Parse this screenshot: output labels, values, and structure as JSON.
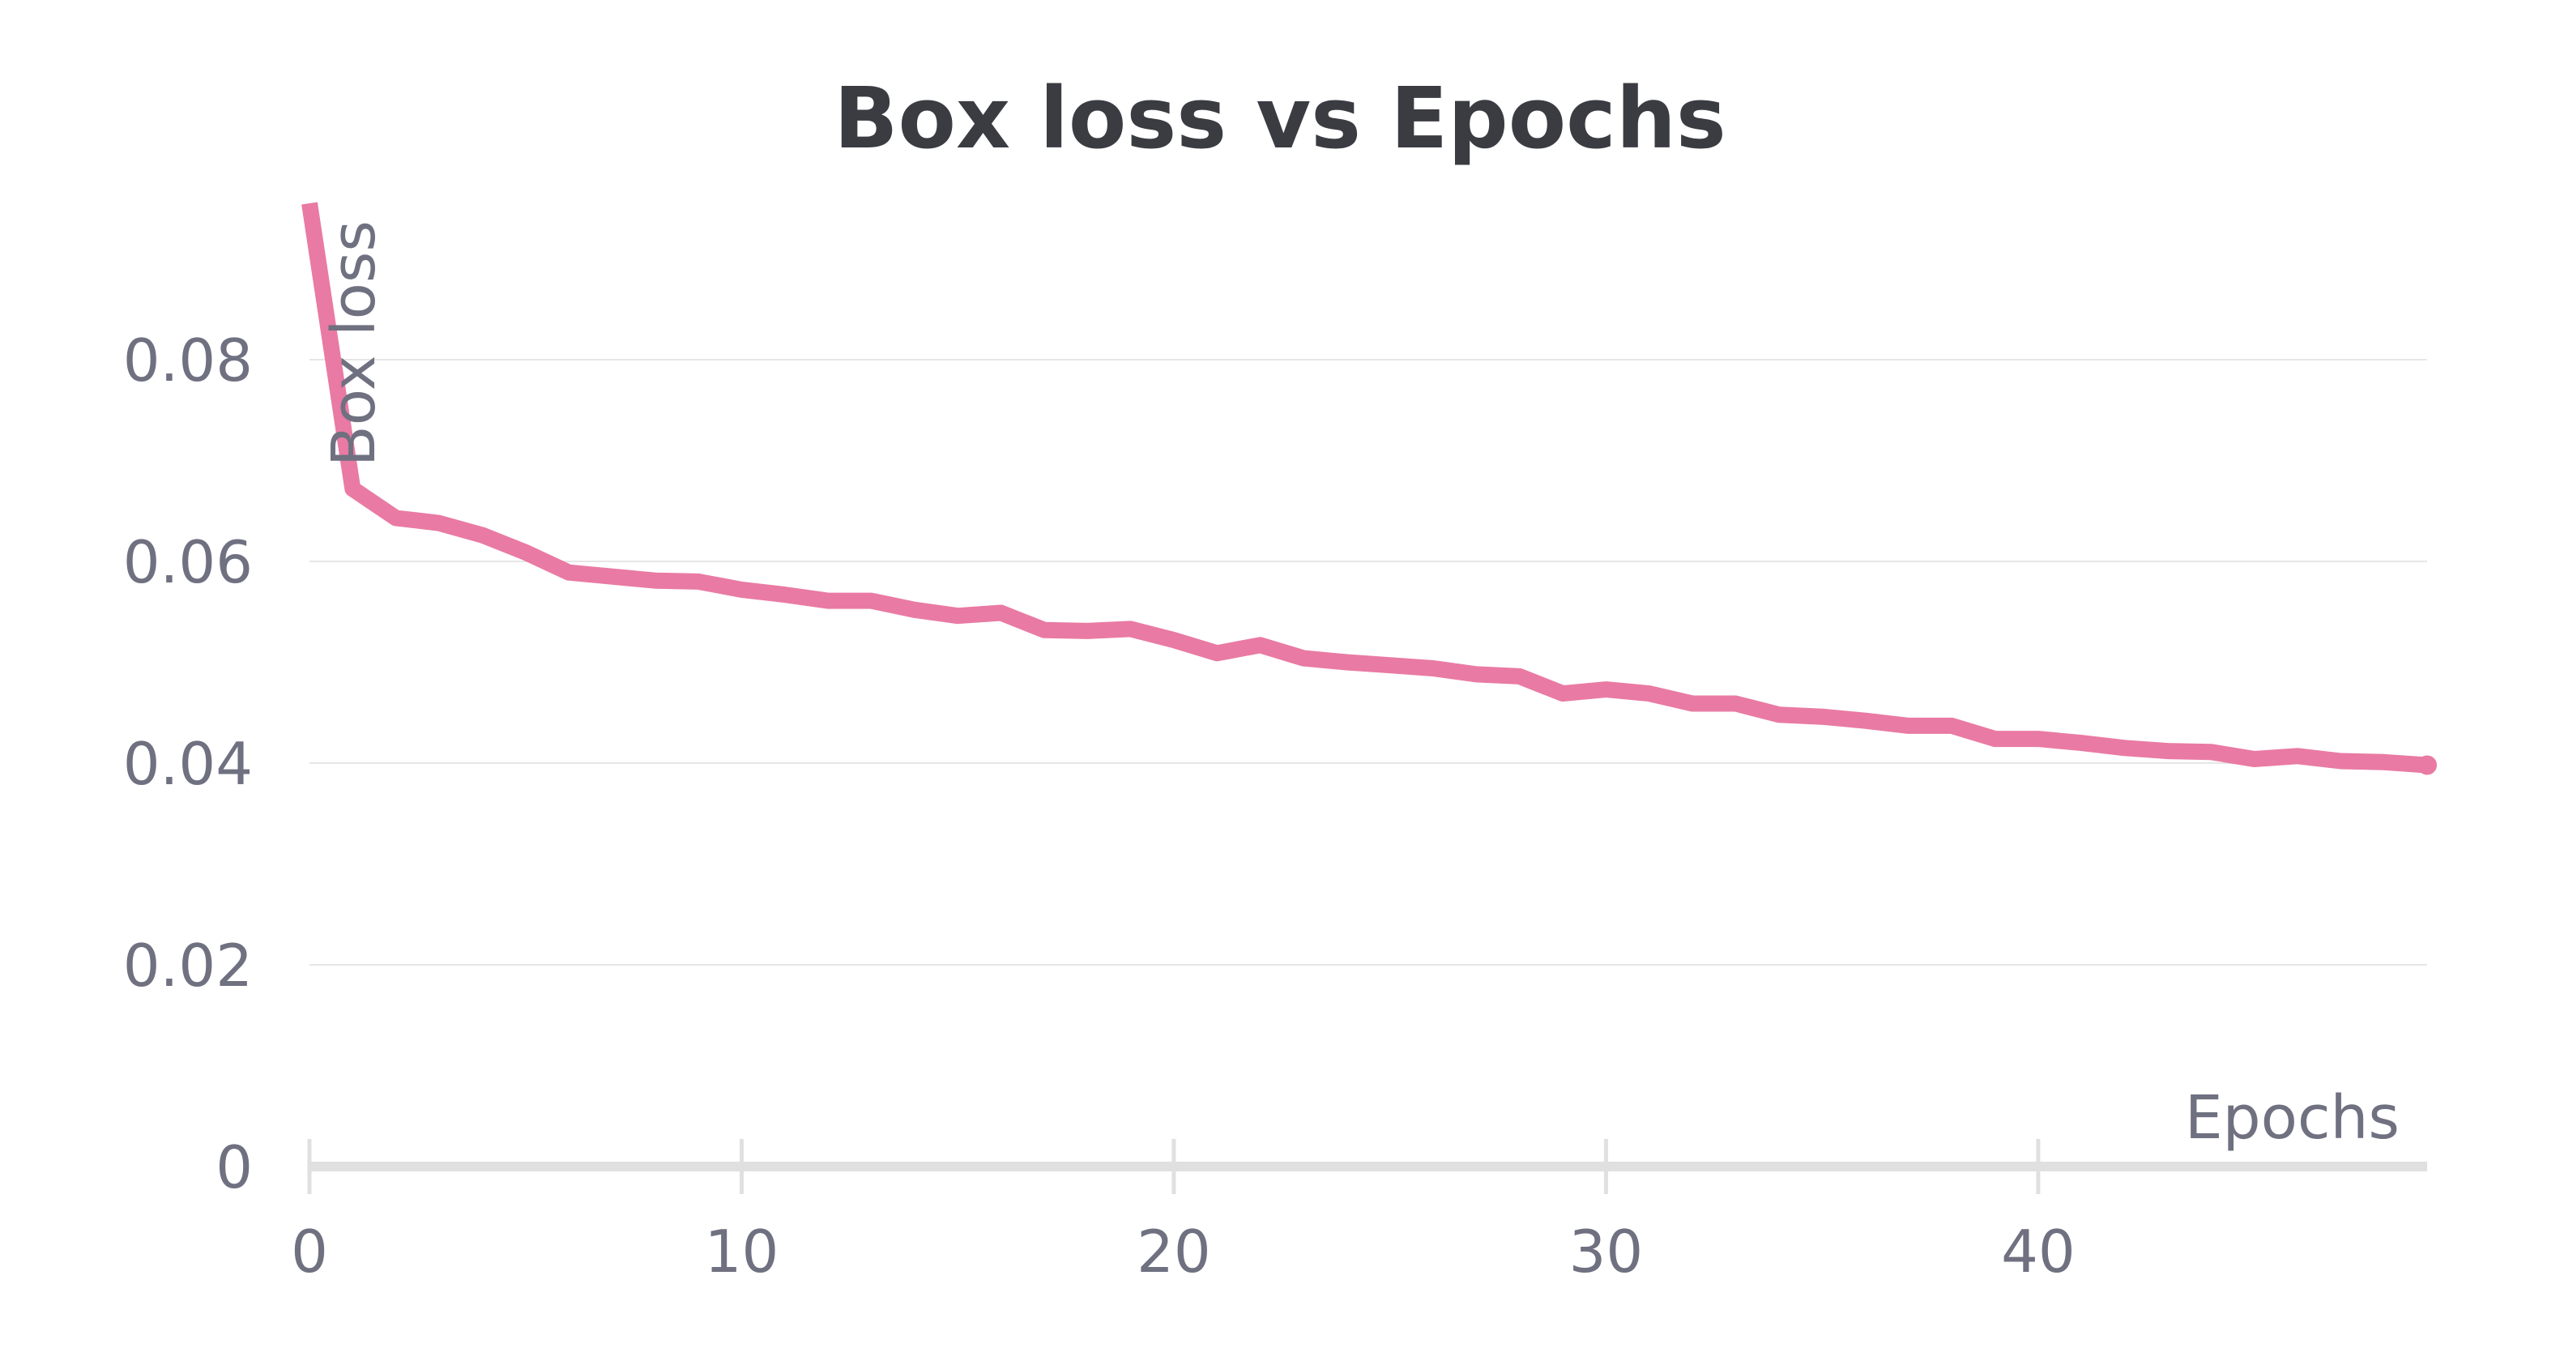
{
  "chart_data": {
    "type": "line",
    "title": "Box loss vs Epochs",
    "xlabel": "Epochs",
    "ylabel": "Box loss",
    "xlim": [
      0,
      49
    ],
    "ylim": [
      0,
      0.096
    ],
    "x_ticks": [
      0,
      10,
      20,
      30,
      40
    ],
    "x_tick_labels": [
      "0",
      "10",
      "20",
      "30",
      "40"
    ],
    "y_ticks": [
      0,
      0.02,
      0.04,
      0.06,
      0.08
    ],
    "y_tick_labels": [
      "0",
      "0.02",
      "0.04",
      "0.06",
      "0.08"
    ],
    "grid": true,
    "line_color": "#e97aa3",
    "series": [
      {
        "x": [
          0,
          1,
          2,
          3,
          4,
          5,
          6,
          7,
          8,
          9,
          10,
          11,
          12,
          13,
          14,
          15,
          16,
          17,
          18,
          19,
          20,
          21,
          22,
          23,
          24,
          25,
          26,
          27,
          28,
          29,
          30,
          31,
          32,
          33,
          34,
          35,
          36,
          37,
          38,
          39,
          40,
          41,
          42,
          43,
          44,
          45,
          46,
          47,
          48,
          49
        ],
        "values": [
          0.0955,
          0.0672,
          0.0643,
          0.0638,
          0.0626,
          0.0609,
          0.0589,
          0.0585,
          0.0581,
          0.058,
          0.0572,
          0.0567,
          0.0561,
          0.0561,
          0.0552,
          0.0546,
          0.0549,
          0.0532,
          0.0531,
          0.0533,
          0.0522,
          0.0509,
          0.0517,
          0.0504,
          0.05,
          0.0497,
          0.0494,
          0.0488,
          0.0486,
          0.0469,
          0.0473,
          0.0469,
          0.0459,
          0.0459,
          0.0448,
          0.0446,
          0.0442,
          0.0437,
          0.0437,
          0.0424,
          0.0424,
          0.042,
          0.0415,
          0.0412,
          0.0411,
          0.0404,
          0.0407,
          0.0402,
          0.0401,
          0.0398
        ]
      }
    ]
  }
}
